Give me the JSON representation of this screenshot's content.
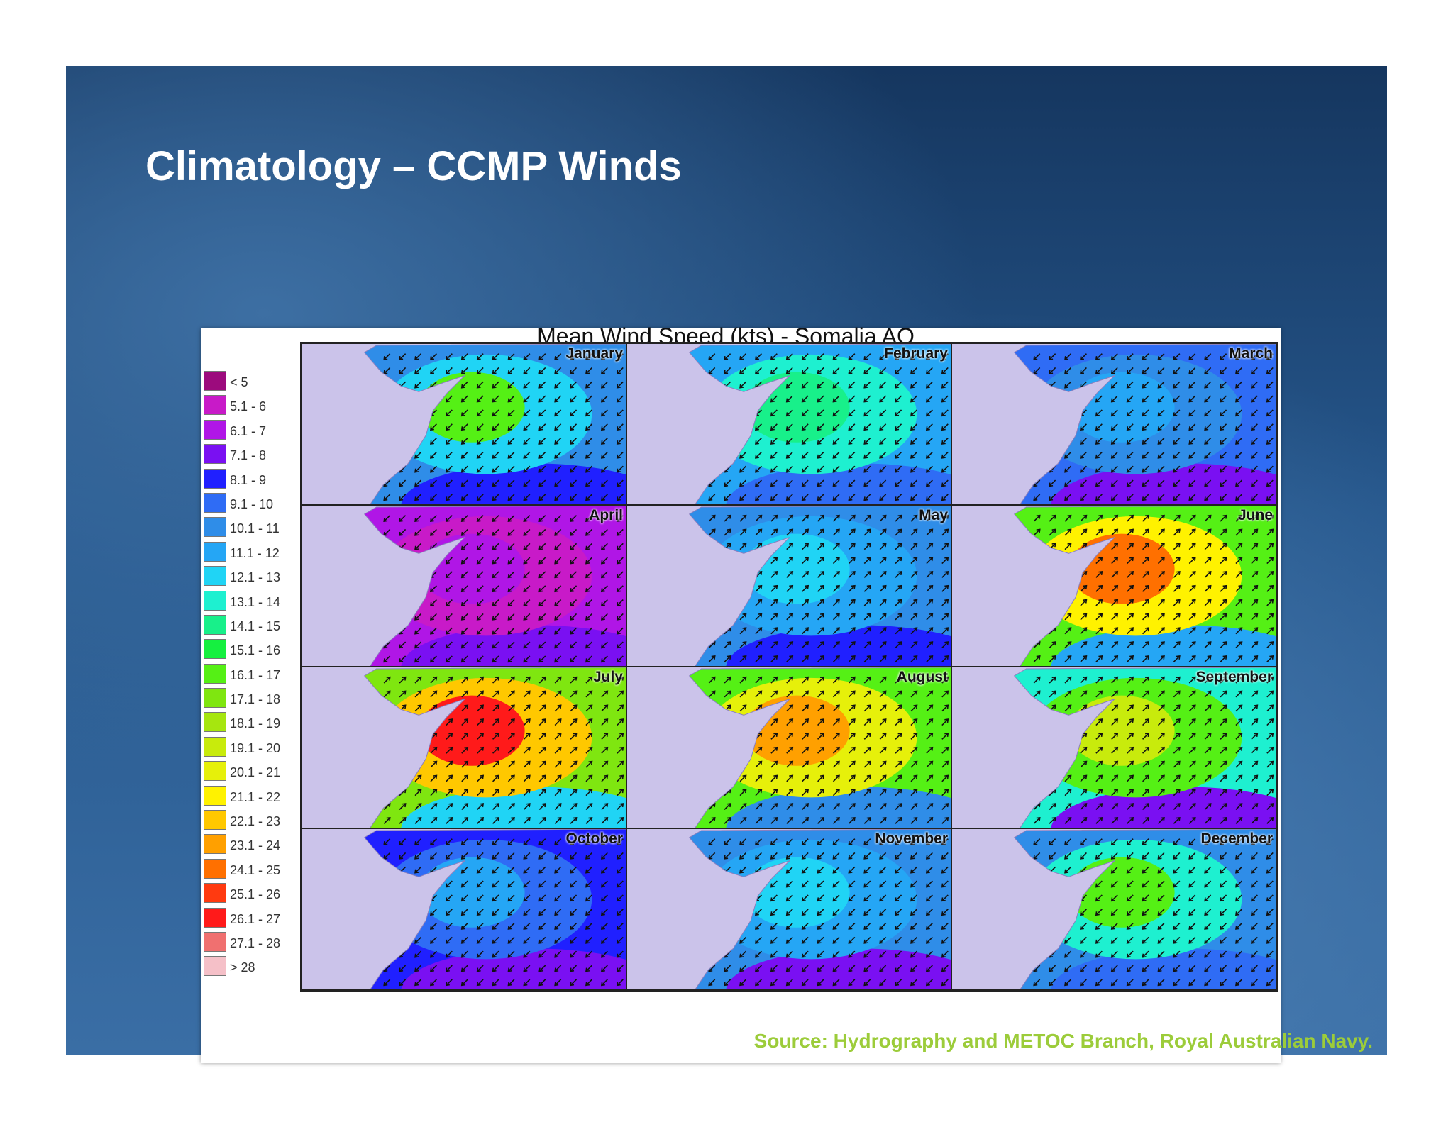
{
  "slide": {
    "title": "Climatology – CCMP Winds",
    "source": "Source: Hydrography and METOC Branch, Royal Australian Navy."
  },
  "figure": {
    "title": "Mean Wind Speed (kts) - Somalia AO",
    "legend": [
      {
        "label": "< 5",
        "color": "#9c0b7d"
      },
      {
        "label": "5.1 - 6",
        "color": "#c81ac8"
      },
      {
        "label": "6.1 - 7",
        "color": "#b016e6"
      },
      {
        "label": "7.1 - 8",
        "color": "#7a10f2"
      },
      {
        "label": "8.1 - 9",
        "color": "#2020ff"
      },
      {
        "label": "9.1 - 10",
        "color": "#2f6cf5"
      },
      {
        "label": "10.1 - 11",
        "color": "#2f8de8"
      },
      {
        "label": "11.1 - 12",
        "color": "#25a6f5"
      },
      {
        "label": "12.1 - 13",
        "color": "#20d4f5"
      },
      {
        "label": "13.1 - 14",
        "color": "#1ef0d0"
      },
      {
        "label": "14.1 - 15",
        "color": "#18f08a"
      },
      {
        "label": "15.1 - 16",
        "color": "#15f040"
      },
      {
        "label": "16.1 - 17",
        "color": "#55f015"
      },
      {
        "label": "17.1 - 18",
        "color": "#7fe610"
      },
      {
        "label": "18.1 - 19",
        "color": "#a6e60f"
      },
      {
        "label": "19.1 - 20",
        "color": "#c8eb0c"
      },
      {
        "label": "20.1 - 21",
        "color": "#e6f00a"
      },
      {
        "label": "21.1 - 22",
        "color": "#fff200"
      },
      {
        "label": "22.1 - 23",
        "color": "#ffc800"
      },
      {
        "label": "23.1 - 24",
        "color": "#ffa000"
      },
      {
        "label": "24.1 - 25",
        "color": "#ff7000"
      },
      {
        "label": "25.1 - 26",
        "color": "#ff3a10"
      },
      {
        "label": "26.1 - 27",
        "color": "#ff1a1a"
      },
      {
        "label": "27.1 - 28",
        "color": "#f07070"
      },
      {
        "label": "> 28",
        "color": "#f5c0c8"
      }
    ],
    "panels": [
      {
        "month": "January",
        "colors": {
          "sea": "#2f8de8",
          "mid": "#20d4f5",
          "core": "#55f015",
          "south": "#2020ff"
        }
      },
      {
        "month": "February",
        "colors": {
          "sea": "#25a6f5",
          "mid": "#1ef0d0",
          "core": "#18f08a",
          "south": "#2f6cf5"
        }
      },
      {
        "month": "March",
        "colors": {
          "sea": "#2f6cf5",
          "mid": "#2f8de8",
          "core": "#25a6f5",
          "south": "#7a10f2"
        }
      },
      {
        "month": "April",
        "colors": {
          "sea": "#b016e6",
          "mid": "#c81ac8",
          "core": "#b016e6",
          "south": "#7a10f2"
        }
      },
      {
        "month": "May",
        "colors": {
          "sea": "#2f8de8",
          "mid": "#25a6f5",
          "core": "#20d4f5",
          "south": "#2020ff"
        }
      },
      {
        "month": "June",
        "colors": {
          "sea": "#55f015",
          "mid": "#fff200",
          "core": "#ff7000",
          "south": "#25a6f5"
        }
      },
      {
        "month": "July",
        "colors": {
          "sea": "#7fe610",
          "mid": "#ffc800",
          "core": "#ff1a1a",
          "south": "#20d4f5"
        }
      },
      {
        "month": "August",
        "colors": {
          "sea": "#55f015",
          "mid": "#e6f00a",
          "core": "#ffa000",
          "south": "#2f8de8"
        }
      },
      {
        "month": "September",
        "colors": {
          "sea": "#1ef0d0",
          "mid": "#55f015",
          "core": "#c8eb0c",
          "south": "#7a10f2"
        }
      },
      {
        "month": "October",
        "colors": {
          "sea": "#2020ff",
          "mid": "#2f6cf5",
          "core": "#25a6f5",
          "south": "#7a10f2"
        }
      },
      {
        "month": "November",
        "colors": {
          "sea": "#2f8de8",
          "mid": "#25a6f5",
          "core": "#20d4f5",
          "south": "#7a10f2"
        }
      },
      {
        "month": "December",
        "colors": {
          "sea": "#2f8de8",
          "mid": "#1ef0d0",
          "core": "#55f015",
          "south": "#2f6cf5"
        }
      }
    ],
    "land_color": "#cbc3ea"
  }
}
